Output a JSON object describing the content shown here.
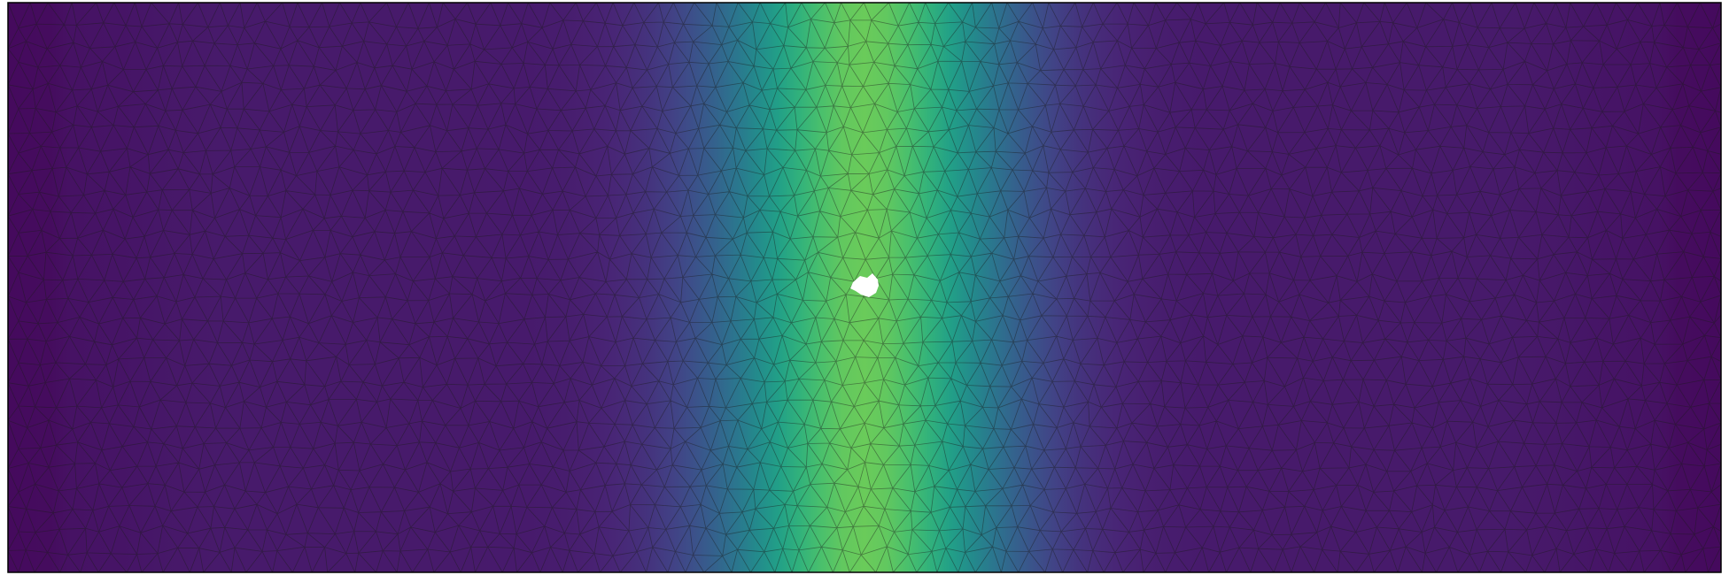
{
  "figure": {
    "type": "triangulated-mesh-field",
    "colormap": "viridis",
    "mesh_edge_color": "#1a1a1a",
    "frame_color": "#000000",
    "background": "#ffffff",
    "hole_color": "#ffffff",
    "field_profile": {
      "axis": "horizontal",
      "center_fraction": 0.5,
      "peak_value": 0.77,
      "edge_value": 0.0,
      "baseline_value": 0.07
    }
  }
}
